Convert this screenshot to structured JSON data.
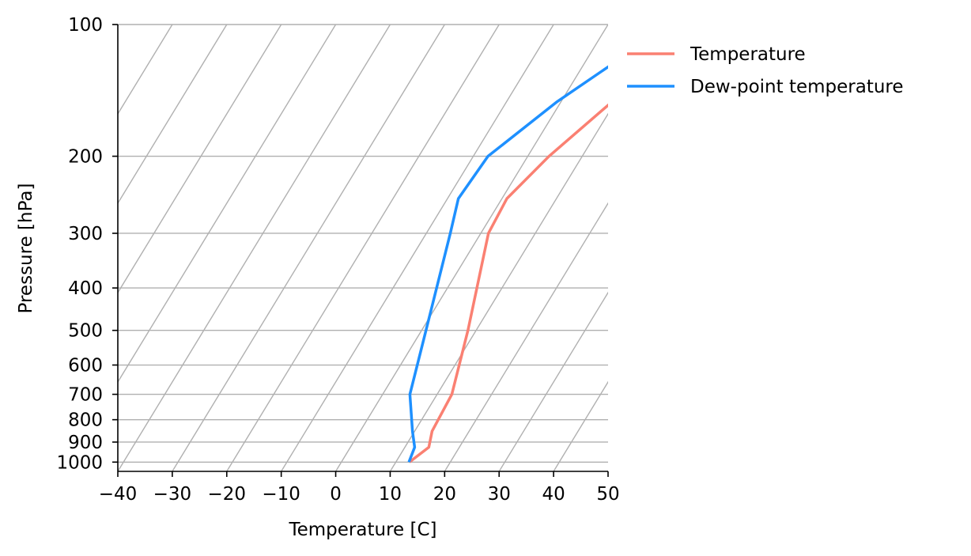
{
  "chart_data": {
    "type": "line",
    "chart_kind": "skew-t",
    "xlabel": "Temperature [C]",
    "ylabel": "Pressure [hPa]",
    "xlim": [
      -40,
      50
    ],
    "ylim": [
      1050,
      100
    ],
    "y_scale": "log",
    "x_ticks": [
      -40,
      -30,
      -20,
      -10,
      0,
      10,
      20,
      30,
      40,
      50
    ],
    "x_tick_labels": [
      "−40",
      "−30",
      "−20",
      "−10",
      "0",
      "10",
      "20",
      "30",
      "40",
      "50"
    ],
    "y_ticks": [
      100,
      200,
      300,
      400,
      500,
      600,
      700,
      800,
      900,
      1000
    ],
    "y_tick_labels": [
      "100",
      "200",
      "300",
      "400",
      "500",
      "600",
      "700",
      "800",
      "900",
      "1000"
    ],
    "horizontal_grid": true,
    "skewed_isotherms": true,
    "legend_position": "outside-top-right",
    "series": [
      {
        "name": "Temperature",
        "color": "#FA8072",
        "points": [
          {
            "pressure": 1000,
            "temperature": 12.5
          },
          {
            "pressure": 925,
            "temperature": 14.4
          },
          {
            "pressure": 850,
            "temperature": 13.2
          },
          {
            "pressure": 700,
            "temperature": 12.7
          },
          {
            "pressure": 500,
            "temperature": 8.5
          },
          {
            "pressure": 300,
            "temperature": 1.4
          },
          {
            "pressure": 250,
            "temperature": 0.9
          },
          {
            "pressure": 200,
            "temperature": 3.9
          },
          {
            "pressure": 150,
            "temperature": 9.4
          },
          {
            "pressure": 100,
            "temperature": 19.0
          }
        ]
      },
      {
        "name": "Dew-point temperature",
        "color": "#1E90FF",
        "points": [
          {
            "pressure": 1000,
            "temperature": 12.4
          },
          {
            "pressure": 925,
            "temperature": 11.8
          },
          {
            "pressure": 850,
            "temperature": 9.6
          },
          {
            "pressure": 700,
            "temperature": 5.0
          },
          {
            "pressure": 500,
            "temperature": 0.8
          },
          {
            "pressure": 300,
            "temperature": -5.6
          },
          {
            "pressure": 250,
            "temperature": -8.0
          },
          {
            "pressure": 200,
            "temperature": -7.3
          },
          {
            "pressure": 150,
            "temperature": -0.7
          },
          {
            "pressure": 100,
            "temperature": 11.4
          }
        ]
      }
    ]
  }
}
